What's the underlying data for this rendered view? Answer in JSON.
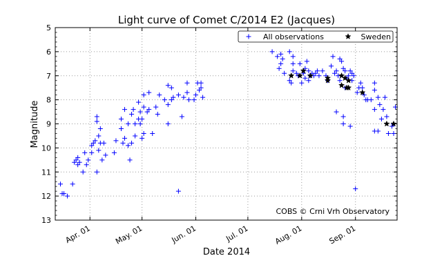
{
  "chart_data": {
    "type": "scatter",
    "title": "Light curve of Comet C/2014 E2 (Jacques)",
    "xlabel": "Date 2014",
    "ylabel": "Magnitude",
    "xlim": [
      "2014-03-12",
      "2014-09-25"
    ],
    "ylim": [
      13,
      5
    ],
    "y_inverted": true,
    "grid": true,
    "legend_placement": "top-right",
    "xticks": [
      {
        "date": "2014-04-01",
        "label": "Apr. 01"
      },
      {
        "date": "2014-05-01",
        "label": "May. 01"
      },
      {
        "date": "2014-06-01",
        "label": "Jun. 01"
      },
      {
        "date": "2014-07-01",
        "label": "Jul. 01"
      },
      {
        "date": "2014-08-01",
        "label": "Aug. 01"
      },
      {
        "date": "2014-09-01",
        "label": "Sep. 01"
      }
    ],
    "yticks": [
      "5",
      "6",
      "7",
      "8",
      "9",
      "10",
      "11",
      "12",
      "13"
    ],
    "annotation": "COBS © Crni Vrh Observatory",
    "series": [
      {
        "name": "All observations",
        "marker": "plus",
        "color": "#0000ff",
        "points": [
          [
            "2014-03-15",
            11.5
          ],
          [
            "2014-03-16",
            11.9
          ],
          [
            "2014-03-17",
            11.9
          ],
          [
            "2014-03-19",
            12.0
          ],
          [
            "2014-03-22",
            11.5
          ],
          [
            "2014-03-23",
            10.6
          ],
          [
            "2014-03-24",
            10.5
          ],
          [
            "2014-03-25",
            10.4
          ],
          [
            "2014-03-25",
            10.7
          ],
          [
            "2014-03-26",
            10.6
          ],
          [
            "2014-03-28",
            11.0
          ],
          [
            "2014-03-29",
            10.2
          ],
          [
            "2014-03-30",
            10.7
          ],
          [
            "2014-03-31",
            10.5
          ],
          [
            "2014-04-02",
            10.2
          ],
          [
            "2014-04-02",
            9.9
          ],
          [
            "2014-04-03",
            9.8
          ],
          [
            "2014-04-04",
            9.7
          ],
          [
            "2014-04-05",
            8.9
          ],
          [
            "2014-04-05",
            8.7
          ],
          [
            "2014-04-05",
            11.0
          ],
          [
            "2014-04-06",
            10.1
          ],
          [
            "2014-04-06",
            9.5
          ],
          [
            "2014-04-07",
            9.8
          ],
          [
            "2014-04-07",
            9.2
          ],
          [
            "2014-04-08",
            10.5
          ],
          [
            "2014-04-09",
            9.8
          ],
          [
            "2014-04-10",
            10.3
          ],
          [
            "2014-04-15",
            10.2
          ],
          [
            "2014-04-16",
            9.7
          ],
          [
            "2014-04-19",
            9.2
          ],
          [
            "2014-04-19",
            8.8
          ],
          [
            "2014-04-20",
            9.8
          ],
          [
            "2014-04-21",
            9.6
          ],
          [
            "2014-04-21",
            8.4
          ],
          [
            "2014-04-23",
            9.0
          ],
          [
            "2014-04-23",
            9.9
          ],
          [
            "2014-04-24",
            10.5
          ],
          [
            "2014-04-25",
            9.8
          ],
          [
            "2014-04-25",
            8.6
          ],
          [
            "2014-04-26",
            8.4
          ],
          [
            "2014-04-27",
            9.5
          ],
          [
            "2014-04-27",
            9.0
          ],
          [
            "2014-04-29",
            8.8
          ],
          [
            "2014-04-29",
            8.1
          ],
          [
            "2014-04-30",
            8.5
          ],
          [
            "2014-04-30",
            9.0
          ],
          [
            "2014-05-01",
            9.6
          ],
          [
            "2014-05-01",
            8.8
          ],
          [
            "2014-05-02",
            9.4
          ],
          [
            "2014-05-02",
            7.8
          ],
          [
            "2014-05-02",
            8.3
          ],
          [
            "2014-05-04",
            8.5
          ],
          [
            "2014-05-05",
            7.7
          ],
          [
            "2014-05-05",
            8.4
          ],
          [
            "2014-05-07",
            9.4
          ],
          [
            "2014-05-09",
            8.3
          ],
          [
            "2014-05-10",
            8.6
          ],
          [
            "2014-05-11",
            7.8
          ],
          [
            "2014-05-14",
            8.0
          ],
          [
            "2014-05-16",
            9.0
          ],
          [
            "2014-05-16",
            8.2
          ],
          [
            "2014-05-16",
            7.4
          ],
          [
            "2014-05-18",
            8.0
          ],
          [
            "2014-05-18",
            7.5
          ],
          [
            "2014-05-19",
            7.9
          ],
          [
            "2014-05-22",
            7.8
          ],
          [
            "2014-05-22",
            11.8
          ],
          [
            "2014-05-24",
            8.7
          ],
          [
            "2014-05-25",
            7.9
          ],
          [
            "2014-05-27",
            7.7
          ],
          [
            "2014-05-27",
            7.3
          ],
          [
            "2014-05-28",
            8.0
          ],
          [
            "2014-05-31",
            8.0
          ],
          [
            "2014-06-01",
            7.8
          ],
          [
            "2014-06-02",
            7.3
          ],
          [
            "2014-06-03",
            7.6
          ],
          [
            "2014-06-04",
            7.3
          ],
          [
            "2014-06-04",
            7.5
          ],
          [
            "2014-06-05",
            7.9
          ],
          [
            "2014-07-15",
            6.0
          ],
          [
            "2014-07-18",
            6.2
          ],
          [
            "2014-07-19",
            6.7
          ],
          [
            "2014-07-20",
            6.1
          ],
          [
            "2014-07-20",
            6.5
          ],
          [
            "2014-07-21",
            6.3
          ],
          [
            "2014-07-22",
            6.9
          ],
          [
            "2014-07-25",
            6.0
          ],
          [
            "2014-07-25",
            7.2
          ],
          [
            "2014-07-26",
            7.3
          ],
          [
            "2014-07-27",
            6.2
          ],
          [
            "2014-07-27",
            6.5
          ],
          [
            "2014-07-27",
            6.8
          ],
          [
            "2014-07-29",
            6.9
          ],
          [
            "2014-07-30",
            7.0
          ],
          [
            "2014-07-31",
            6.5
          ],
          [
            "2014-08-01",
            7.3
          ],
          [
            "2014-08-02",
            6.9
          ],
          [
            "2014-08-03",
            7.1
          ],
          [
            "2014-08-03",
            6.7
          ],
          [
            "2014-08-04",
            6.4
          ],
          [
            "2014-08-05",
            6.8
          ],
          [
            "2014-08-05",
            7.2
          ],
          [
            "2014-08-06",
            7.0
          ],
          [
            "2014-08-07",
            6.9
          ],
          [
            "2014-08-08",
            7.0
          ],
          [
            "2014-08-09",
            6.9
          ],
          [
            "2014-08-10",
            6.8
          ],
          [
            "2014-08-11",
            7.0
          ],
          [
            "2014-08-13",
            6.8
          ],
          [
            "2014-08-15",
            7.0
          ],
          [
            "2014-08-16",
            7.2
          ],
          [
            "2014-08-18",
            6.6
          ],
          [
            "2014-08-19",
            6.2
          ],
          [
            "2014-08-20",
            6.9
          ],
          [
            "2014-08-21",
            6.8
          ],
          [
            "2014-08-21",
            8.5
          ],
          [
            "2014-08-22",
            7.0
          ],
          [
            "2014-08-23",
            6.3
          ],
          [
            "2014-08-23",
            7.2
          ],
          [
            "2014-08-24",
            6.4
          ],
          [
            "2014-08-25",
            6.7
          ],
          [
            "2014-08-25",
            8.7
          ],
          [
            "2014-08-25",
            9.0
          ],
          [
            "2014-08-26",
            6.8
          ],
          [
            "2014-08-26",
            7.5
          ],
          [
            "2014-08-27",
            7.1
          ],
          [
            "2014-08-28",
            7.0
          ],
          [
            "2014-08-29",
            6.8
          ],
          [
            "2014-08-29",
            9.1
          ],
          [
            "2014-08-30",
            7.2
          ],
          [
            "2014-08-30",
            6.9
          ],
          [
            "2014-08-31",
            7.0
          ],
          [
            "2014-09-01",
            11.7
          ],
          [
            "2014-09-02",
            7.7
          ],
          [
            "2014-09-03",
            7.5
          ],
          [
            "2014-09-04",
            7.3
          ],
          [
            "2014-09-05",
            7.5
          ],
          [
            "2014-09-06",
            7.8
          ],
          [
            "2014-09-07",
            8.0
          ],
          [
            "2014-09-08",
            8.0
          ],
          [
            "2014-09-10",
            8.0
          ],
          [
            "2014-09-12",
            7.3
          ],
          [
            "2014-09-12",
            7.6
          ],
          [
            "2014-09-12",
            8.4
          ],
          [
            "2014-09-12",
            9.3
          ],
          [
            "2014-09-14",
            7.9
          ],
          [
            "2014-09-14",
            9.3
          ],
          [
            "2014-09-15",
            8.2
          ],
          [
            "2014-09-16",
            8.8
          ],
          [
            "2014-09-17",
            8.4
          ],
          [
            "2014-09-18",
            7.9
          ],
          [
            "2014-09-19",
            8.7
          ],
          [
            "2014-09-20",
            9.4
          ],
          [
            "2014-09-22",
            9.1
          ],
          [
            "2014-09-23",
            9.4
          ],
          [
            "2014-09-23",
            9.0
          ],
          [
            "2014-09-24",
            8.3
          ]
        ]
      },
      {
        "name": "Sweden",
        "marker": "star",
        "color": "#000000",
        "points": [
          [
            "2014-07-26",
            7.0
          ],
          [
            "2014-07-31",
            7.0
          ],
          [
            "2014-08-02",
            6.8
          ],
          [
            "2014-08-06",
            7.0
          ],
          [
            "2014-08-16",
            7.1
          ],
          [
            "2014-08-16",
            7.2
          ],
          [
            "2014-08-24",
            7.0
          ],
          [
            "2014-08-26",
            7.1
          ],
          [
            "2014-08-28",
            7.2
          ],
          [
            "2014-08-24",
            7.4
          ],
          [
            "2014-08-27",
            7.5
          ],
          [
            "2014-08-28",
            7.5
          ],
          [
            "2014-09-05",
            7.7
          ],
          [
            "2014-09-19",
            9.0
          ],
          [
            "2014-09-23",
            9.0
          ]
        ]
      }
    ]
  }
}
